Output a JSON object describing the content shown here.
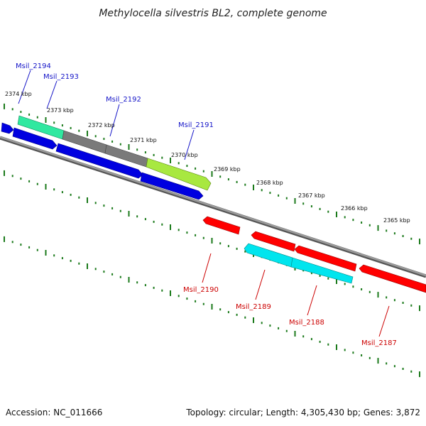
{
  "title": "Methylocella silvestris BL2, complete genome",
  "footer": {
    "accession": "Accession: NC_011666",
    "topology": "Topology: circular; Length: 4,305,430 bp; Genes: 3,872"
  },
  "colors": {
    "forward_label": "#1515c8",
    "reverse_label": "#cc0000",
    "backbone": "#8a8a8a",
    "tick": "#1b7a1b"
  },
  "ticks": [
    "2374 kbp",
    "2373 kbp",
    "2372 kbp",
    "2371 kbp",
    "2370 kbp",
    "2369 kbp",
    "2368 kbp",
    "2367 kbp",
    "2366 kbp",
    "2365 kbp"
  ],
  "genes": {
    "forward": [
      {
        "name": "Msil_2194",
        "color": "#30e8a0"
      },
      {
        "name": "Msil_2193",
        "color": "#7a7a7a"
      },
      {
        "name": "Msil_2192",
        "color": "#7a7a7a"
      },
      {
        "name": "Msil_2191",
        "color": "#a8e840"
      }
    ],
    "reverse": [
      {
        "name": "Msil_2190",
        "color": "#ff0000"
      },
      {
        "name": "Msil_2189",
        "color": "#00e5ee"
      },
      {
        "name": "Msil_2188",
        "color": "#00e5ee"
      },
      {
        "name": "Msil_2187",
        "color": "#ff0000"
      }
    ]
  }
}
